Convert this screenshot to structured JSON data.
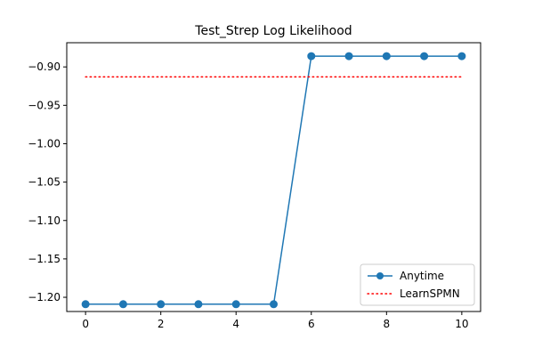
{
  "chart_data": {
    "type": "line",
    "title": "Test_Strep Log Likelihood",
    "xlabel": "",
    "ylabel": "",
    "xlim": [
      -0.5,
      10.5
    ],
    "ylim": [
      -1.2185,
      -0.8685
    ],
    "xticks": [
      0,
      2,
      4,
      6,
      8,
      10
    ],
    "yticks": [
      -1.2,
      -1.15,
      -1.1,
      -1.05,
      -1.0,
      -0.95,
      -0.9
    ],
    "ytick_labels": [
      "−1.20",
      "−1.15",
      "−1.10",
      "−1.05",
      "−1.00",
      "−0.95",
      "−0.90"
    ],
    "grid": false,
    "legend_position": "lower-right",
    "series": [
      {
        "name": "Anytime",
        "style": "solid-line-with-circle-markers",
        "color": "#1f77b4",
        "x": [
          0,
          1,
          2,
          3,
          4,
          5,
          6,
          7,
          8,
          9,
          10
        ],
        "y": [
          -1.209,
          -1.209,
          -1.209,
          -1.209,
          -1.209,
          -1.209,
          -0.886,
          -0.886,
          -0.886,
          -0.886,
          -0.886
        ]
      },
      {
        "name": "LearnSPMN",
        "style": "dotted-line",
        "color": "#ff0000",
        "x": [
          0,
          10
        ],
        "y": [
          -0.913,
          -0.913
        ]
      }
    ]
  }
}
